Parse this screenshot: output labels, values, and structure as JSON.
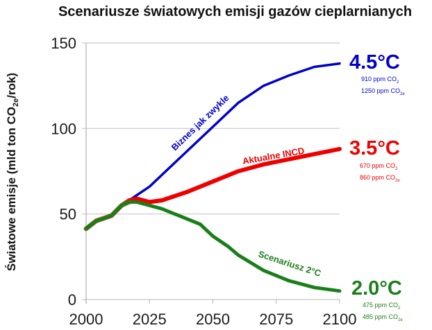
{
  "chart_data": {
    "type": "line",
    "title": "Scenariusze światowych emisji gazów cieplarnianych",
    "xlabel": "",
    "ylabel": "Światowe emisje (mld ton CO2e/rok)",
    "ylabel_main": "Światowe emisje (mld ton CO",
    "ylabel_sub": "2e",
    "ylabel_tail": "/rok)",
    "xlim": [
      2000,
      2100
    ],
    "ylim": [
      0,
      150
    ],
    "xticks": [
      "2000",
      "2025",
      "2050",
      "2075",
      "2100"
    ],
    "yticks": [
      "0",
      "50",
      "100",
      "150"
    ],
    "grid": "horizontal",
    "series": [
      {
        "name": "Biznes jak zwykle",
        "color": "#0000cc",
        "x": [
          2000,
          2004,
          2008,
          2010,
          2014,
          2017,
          2020,
          2025,
          2030,
          2040,
          2050,
          2060,
          2070,
          2080,
          2090,
          2100
        ],
        "values": [
          41.4,
          46,
          48,
          49,
          55,
          58,
          61,
          66,
          73,
          87,
          101,
          115,
          125,
          131,
          136,
          138
        ],
        "end_label": "4.5°C",
        "ppm_co2": "910 ppm CO",
        "ppm_co2e": "1250 ppm CO"
      },
      {
        "name": "Aktualne INCD",
        "color": "#ee0000",
        "x": [
          2000,
          2004,
          2008,
          2010,
          2014,
          2017,
          2020,
          2025,
          2030,
          2040,
          2050,
          2060,
          2070,
          2080,
          2090,
          2100
        ],
        "values": [
          41.4,
          46,
          48,
          49,
          55,
          58,
          59,
          57,
          58,
          63,
          69,
          75,
          79,
          82,
          85,
          88
        ],
        "end_label": "3.5°C",
        "ppm_co2": "670 ppm CO",
        "ppm_co2e": "860 ppm CO"
      },
      {
        "name": "Scenariusz 2°C",
        "color": "#1a7f1a",
        "x": [
          2000,
          2004,
          2008,
          2010,
          2014,
          2017,
          2020,
          2025,
          2030,
          2040,
          2045,
          2050,
          2056,
          2060,
          2070,
          2080,
          2090,
          2100
        ],
        "values": [
          41.4,
          46,
          48,
          49,
          55,
          57,
          57,
          55,
          53,
          47,
          44,
          37,
          31,
          26,
          17,
          11,
          7,
          5
        ],
        "end_label": "2.0°C",
        "ppm_co2": "475 ppm CO",
        "ppm_co2e": "485 ppm CO"
      }
    ]
  },
  "labels": {
    "sub_co2": "2",
    "sub_co2e": "2e"
  }
}
